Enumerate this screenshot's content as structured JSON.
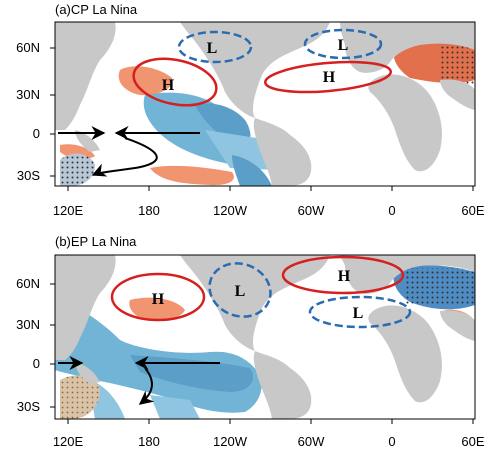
{
  "panels": [
    {
      "title": "(a)CP La Nina",
      "ylabels": [
        "60N",
        "30N",
        "0",
        "30S"
      ],
      "xlabels": [
        "120E",
        "180",
        "120W",
        "60W",
        "0",
        "60E"
      ],
      "highs": [
        "H",
        "H"
      ],
      "lows": [
        "L",
        "L"
      ]
    },
    {
      "title": "(b)EP La Nina",
      "ylabels": [
        "60N",
        "30N",
        "0",
        "30S"
      ],
      "xlabels": [
        "120E",
        "180",
        "120W",
        "60W",
        "0",
        "60E"
      ],
      "highs": [
        "H",
        "H"
      ],
      "lows": [
        "L",
        "L"
      ]
    }
  ],
  "colors": {
    "land": "#c8c8c8",
    "ocean": "#ffffff",
    "cold_anomaly": "#5aa8d0",
    "warm_anomaly": "#ef8a62",
    "high_contour": "#d62020",
    "low_contour": "#2b6cb0"
  }
}
